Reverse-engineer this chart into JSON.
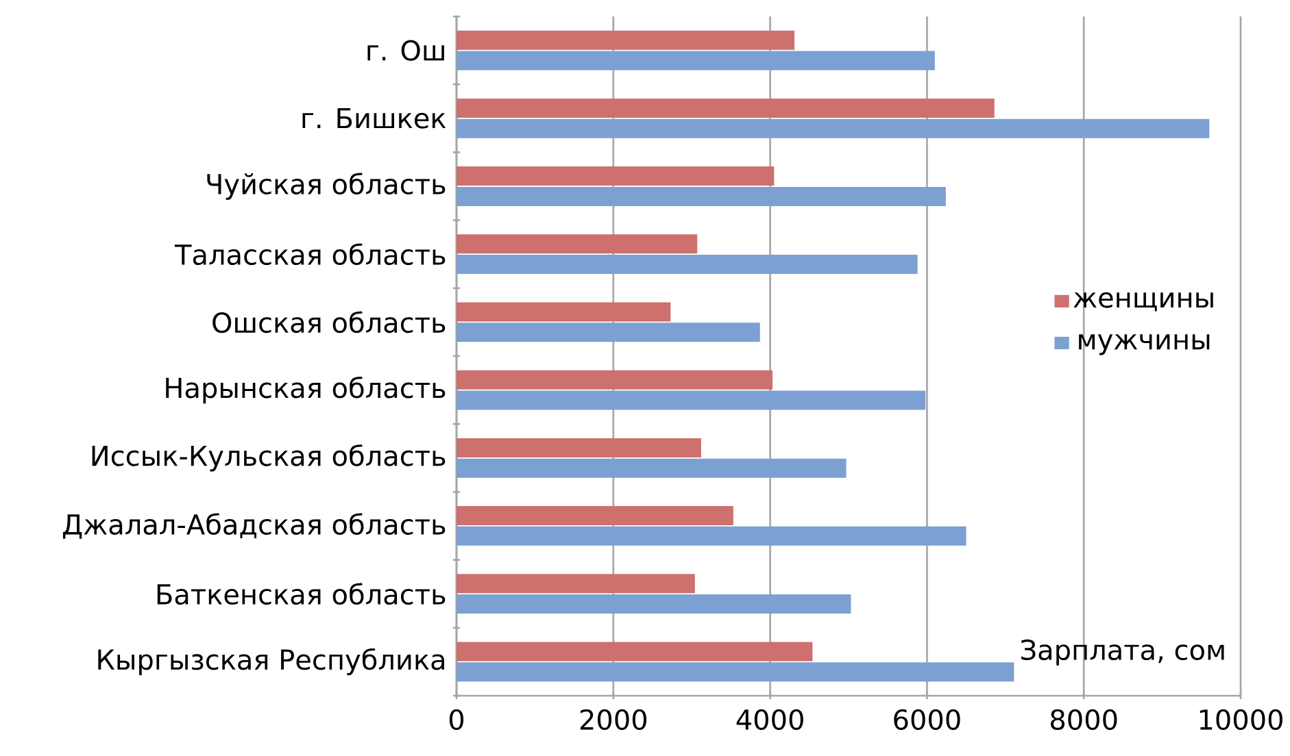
{
  "chart_data": {
    "type": "bar",
    "orientation": "horizontal",
    "xlabel": "Зарплата, сом",
    "categories": [
      "г. Ош",
      "г. Бишкек",
      "Чуйская область",
      "Таласская область",
      "Ошская область",
      "Нарынская область",
      "Иссык-Кульская область",
      "Джалал-Абадская область",
      "Баткенская область",
      "Кыргызская Республика"
    ],
    "series": [
      {
        "name": "женщины",
        "color": "#cd706e",
        "values": [
          4310,
          6860,
          4050,
          3070,
          2730,
          4030,
          3120,
          3530,
          3040,
          4540
        ]
      },
      {
        "name": "мужчины",
        "color": "#7ca0d1",
        "values": [
          6100,
          9600,
          6240,
          5880,
          3870,
          5980,
          4970,
          6500,
          5030,
          7110
        ]
      }
    ],
    "xlim": [
      0,
      10000
    ],
    "xticks": [
      0,
      2000,
      4000,
      6000,
      8000,
      10000
    ],
    "grid": "x",
    "legend": "right"
  }
}
